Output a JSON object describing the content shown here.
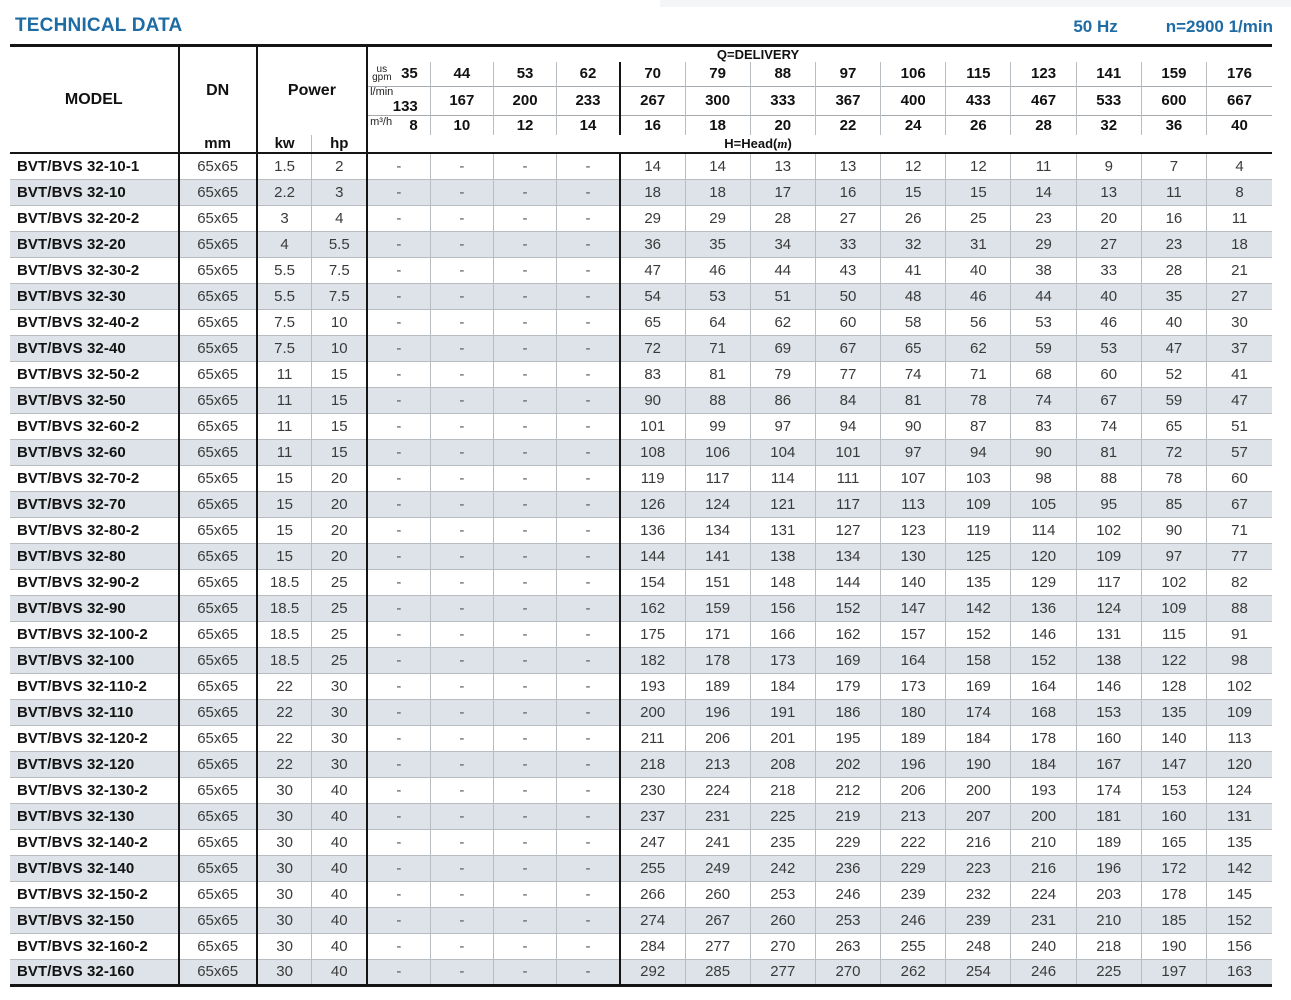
{
  "page": {
    "title": "TECHNICAL DATA",
    "frequency": "50 Hz",
    "speed": "n=2900 1/min"
  },
  "table": {
    "headers": {
      "model": "MODEL",
      "dn": "DN",
      "dn_unit": "mm",
      "power": "Power",
      "kw": "kw",
      "hp": "hp",
      "delivery_label": "Q=DELIVERY",
      "head_prefix": "H=Head(",
      "head_unit": "m",
      "head_suffix": ")",
      "unit_us": "us",
      "unit_gpm": "gpm",
      "unit_lmin": "l/min",
      "unit_m3h": "m³/h",
      "gpm": [
        "35",
        "44",
        "53",
        "62",
        "70",
        "79",
        "88",
        "97",
        "106",
        "115",
        "123",
        "141",
        "159",
        "176"
      ],
      "lmin": [
        "133",
        "167",
        "200",
        "233",
        "267",
        "300",
        "333",
        "367",
        "400",
        "433",
        "467",
        "533",
        "600",
        "667"
      ],
      "m3h": [
        "8",
        "10",
        "12",
        "14",
        "16",
        "18",
        "20",
        "22",
        "24",
        "26",
        "28",
        "32",
        "36",
        "40"
      ]
    },
    "rows": [
      {
        "model": "BVT/BVS 32-10-1",
        "dn": "65x65",
        "kw": "1.5",
        "hp": "2",
        "head": [
          "-",
          "-",
          "-",
          "-",
          "14",
          "14",
          "13",
          "13",
          "12",
          "12",
          "11",
          "9",
          "7",
          "4"
        ]
      },
      {
        "model": "BVT/BVS 32-10",
        "dn": "65x65",
        "kw": "2.2",
        "hp": "3",
        "head": [
          "-",
          "-",
          "-",
          "-",
          "18",
          "18",
          "17",
          "16",
          "15",
          "15",
          "14",
          "13",
          "11",
          "8"
        ]
      },
      {
        "model": "BVT/BVS 32-20-2",
        "dn": "65x65",
        "kw": "3",
        "hp": "4",
        "head": [
          "-",
          "-",
          "-",
          "-",
          "29",
          "29",
          "28",
          "27",
          "26",
          "25",
          "23",
          "20",
          "16",
          "11"
        ]
      },
      {
        "model": "BVT/BVS 32-20",
        "dn": "65x65",
        "kw": "4",
        "hp": "5.5",
        "head": [
          "-",
          "-",
          "-",
          "-",
          "36",
          "35",
          "34",
          "33",
          "32",
          "31",
          "29",
          "27",
          "23",
          "18"
        ]
      },
      {
        "model": "BVT/BVS 32-30-2",
        "dn": "65x65",
        "kw": "5.5",
        "hp": "7.5",
        "head": [
          "-",
          "-",
          "-",
          "-",
          "47",
          "46",
          "44",
          "43",
          "41",
          "40",
          "38",
          "33",
          "28",
          "21"
        ]
      },
      {
        "model": "BVT/BVS 32-30",
        "dn": "65x65",
        "kw": "5.5",
        "hp": "7.5",
        "head": [
          "-",
          "-",
          "-",
          "-",
          "54",
          "53",
          "51",
          "50",
          "48",
          "46",
          "44",
          "40",
          "35",
          "27"
        ]
      },
      {
        "model": "BVT/BVS 32-40-2",
        "dn": "65x65",
        "kw": "7.5",
        "hp": "10",
        "head": [
          "-",
          "-",
          "-",
          "-",
          "65",
          "64",
          "62",
          "60",
          "58",
          "56",
          "53",
          "46",
          "40",
          "30"
        ]
      },
      {
        "model": "BVT/BVS 32-40",
        "dn": "65x65",
        "kw": "7.5",
        "hp": "10",
        "head": [
          "-",
          "-",
          "-",
          "-",
          "72",
          "71",
          "69",
          "67",
          "65",
          "62",
          "59",
          "53",
          "47",
          "37"
        ]
      },
      {
        "model": "BVT/BVS 32-50-2",
        "dn": "65x65",
        "kw": "11",
        "hp": "15",
        "head": [
          "-",
          "-",
          "-",
          "-",
          "83",
          "81",
          "79",
          "77",
          "74",
          "71",
          "68",
          "60",
          "52",
          "41"
        ]
      },
      {
        "model": "BVT/BVS 32-50",
        "dn": "65x65",
        "kw": "11",
        "hp": "15",
        "head": [
          "-",
          "-",
          "-",
          "-",
          "90",
          "88",
          "86",
          "84",
          "81",
          "78",
          "74",
          "67",
          "59",
          "47"
        ]
      },
      {
        "model": "BVT/BVS 32-60-2",
        "dn": "65x65",
        "kw": "11",
        "hp": "15",
        "head": [
          "-",
          "-",
          "-",
          "-",
          "101",
          "99",
          "97",
          "94",
          "90",
          "87",
          "83",
          "74",
          "65",
          "51"
        ]
      },
      {
        "model": "BVT/BVS 32-60",
        "dn": "65x65",
        "kw": "11",
        "hp": "15",
        "head": [
          "-",
          "-",
          "-",
          "-",
          "108",
          "106",
          "104",
          "101",
          "97",
          "94",
          "90",
          "81",
          "72",
          "57"
        ]
      },
      {
        "model": "BVT/BVS 32-70-2",
        "dn": "65x65",
        "kw": "15",
        "hp": "20",
        "head": [
          "-",
          "-",
          "-",
          "-",
          "119",
          "117",
          "114",
          "111",
          "107",
          "103",
          "98",
          "88",
          "78",
          "60"
        ]
      },
      {
        "model": "BVT/BVS 32-70",
        "dn": "65x65",
        "kw": "15",
        "hp": "20",
        "head": [
          "-",
          "-",
          "-",
          "-",
          "126",
          "124",
          "121",
          "117",
          "113",
          "109",
          "105",
          "95",
          "85",
          "67"
        ]
      },
      {
        "model": "BVT/BVS 32-80-2",
        "dn": "65x65",
        "kw": "15",
        "hp": "20",
        "head": [
          "-",
          "-",
          "-",
          "-",
          "136",
          "134",
          "131",
          "127",
          "123",
          "119",
          "114",
          "102",
          "90",
          "71"
        ]
      },
      {
        "model": "BVT/BVS 32-80",
        "dn": "65x65",
        "kw": "15",
        "hp": "20",
        "head": [
          "-",
          "-",
          "-",
          "-",
          "144",
          "141",
          "138",
          "134",
          "130",
          "125",
          "120",
          "109",
          "97",
          "77"
        ]
      },
      {
        "model": "BVT/BVS 32-90-2",
        "dn": "65x65",
        "kw": "18.5",
        "hp": "25",
        "head": [
          "-",
          "-",
          "-",
          "-",
          "154",
          "151",
          "148",
          "144",
          "140",
          "135",
          "129",
          "117",
          "102",
          "82"
        ]
      },
      {
        "model": "BVT/BVS 32-90",
        "dn": "65x65",
        "kw": "18.5",
        "hp": "25",
        "head": [
          "-",
          "-",
          "-",
          "-",
          "162",
          "159",
          "156",
          "152",
          "147",
          "142",
          "136",
          "124",
          "109",
          "88"
        ]
      },
      {
        "model": "BVT/BVS 32-100-2",
        "dn": "65x65",
        "kw": "18.5",
        "hp": "25",
        "head": [
          "-",
          "-",
          "-",
          "-",
          "175",
          "171",
          "166",
          "162",
          "157",
          "152",
          "146",
          "131",
          "115",
          "91"
        ]
      },
      {
        "model": "BVT/BVS 32-100",
        "dn": "65x65",
        "kw": "18.5",
        "hp": "25",
        "head": [
          "-",
          "-",
          "-",
          "-",
          "182",
          "178",
          "173",
          "169",
          "164",
          "158",
          "152",
          "138",
          "122",
          "98"
        ]
      },
      {
        "model": "BVT/BVS 32-110-2",
        "dn": "65x65",
        "kw": "22",
        "hp": "30",
        "head": [
          "-",
          "-",
          "-",
          "-",
          "193",
          "189",
          "184",
          "179",
          "173",
          "169",
          "164",
          "146",
          "128",
          "102"
        ]
      },
      {
        "model": "BVT/BVS 32-110",
        "dn": "65x65",
        "kw": "22",
        "hp": "30",
        "head": [
          "-",
          "-",
          "-",
          "-",
          "200",
          "196",
          "191",
          "186",
          "180",
          "174",
          "168",
          "153",
          "135",
          "109"
        ]
      },
      {
        "model": "BVT/BVS 32-120-2",
        "dn": "65x65",
        "kw": "22",
        "hp": "30",
        "head": [
          "-",
          "-",
          "-",
          "-",
          "211",
          "206",
          "201",
          "195",
          "189",
          "184",
          "178",
          "160",
          "140",
          "113"
        ]
      },
      {
        "model": "BVT/BVS 32-120",
        "dn": "65x65",
        "kw": "22",
        "hp": "30",
        "head": [
          "-",
          "-",
          "-",
          "-",
          "218",
          "213",
          "208",
          "202",
          "196",
          "190",
          "184",
          "167",
          "147",
          "120"
        ]
      },
      {
        "model": "BVT/BVS 32-130-2",
        "dn": "65x65",
        "kw": "30",
        "hp": "40",
        "head": [
          "-",
          "-",
          "-",
          "-",
          "230",
          "224",
          "218",
          "212",
          "206",
          "200",
          "193",
          "174",
          "153",
          "124"
        ]
      },
      {
        "model": "BVT/BVS 32-130",
        "dn": "65x65",
        "kw": "30",
        "hp": "40",
        "head": [
          "-",
          "-",
          "-",
          "-",
          "237",
          "231",
          "225",
          "219",
          "213",
          "207",
          "200",
          "181",
          "160",
          "131"
        ]
      },
      {
        "model": "BVT/BVS 32-140-2",
        "dn": "65x65",
        "kw": "30",
        "hp": "40",
        "head": [
          "-",
          "-",
          "-",
          "-",
          "247",
          "241",
          "235",
          "229",
          "222",
          "216",
          "210",
          "189",
          "165",
          "135"
        ]
      },
      {
        "model": "BVT/BVS 32-140",
        "dn": "65x65",
        "kw": "30",
        "hp": "40",
        "head": [
          "-",
          "-",
          "-",
          "-",
          "255",
          "249",
          "242",
          "236",
          "229",
          "223",
          "216",
          "196",
          "172",
          "142"
        ]
      },
      {
        "model": "BVT/BVS 32-150-2",
        "dn": "65x65",
        "kw": "30",
        "hp": "40",
        "head": [
          "-",
          "-",
          "-",
          "-",
          "266",
          "260",
          "253",
          "246",
          "239",
          "232",
          "224",
          "203",
          "178",
          "145"
        ]
      },
      {
        "model": "BVT/BVS 32-150",
        "dn": "65x65",
        "kw": "30",
        "hp": "40",
        "head": [
          "-",
          "-",
          "-",
          "-",
          "274",
          "267",
          "260",
          "253",
          "246",
          "239",
          "231",
          "210",
          "185",
          "152"
        ]
      },
      {
        "model": "BVT/BVS 32-160-2",
        "dn": "65x65",
        "kw": "30",
        "hp": "40",
        "head": [
          "-",
          "-",
          "-",
          "-",
          "284",
          "277",
          "270",
          "263",
          "255",
          "248",
          "240",
          "218",
          "190",
          "156"
        ]
      },
      {
        "model": "BVT/BVS 32-160",
        "dn": "65x65",
        "kw": "30",
        "hp": "40",
        "head": [
          "-",
          "-",
          "-",
          "-",
          "292",
          "285",
          "277",
          "270",
          "262",
          "254",
          "246",
          "225",
          "197",
          "163"
        ]
      }
    ]
  }
}
